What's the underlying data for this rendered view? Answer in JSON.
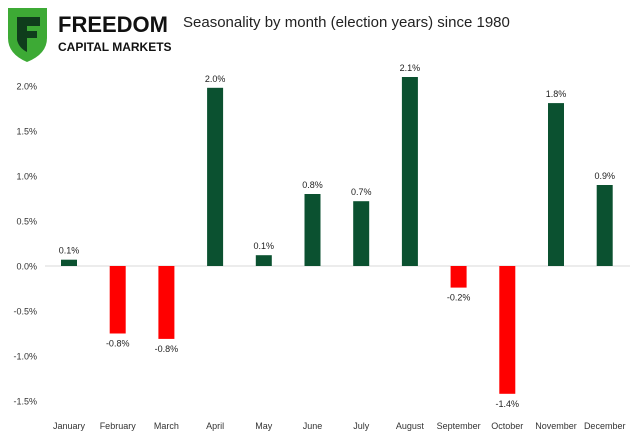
{
  "logo": {
    "name": "FREEDOM",
    "sub": "CAPITAL MARKETS"
  },
  "chart_data": {
    "type": "bar",
    "title": "Seasonality by month (election years) since 1980",
    "xlabel": "",
    "ylabel": "",
    "ylim": [
      -1.5,
      2.0
    ],
    "yticks": [
      2.0,
      1.5,
      1.0,
      0.5,
      0.0,
      -0.5,
      -1.0,
      -1.5
    ],
    "ytick_labels": [
      "2.0%",
      "1.5%",
      "1.0%",
      "0.5%",
      "0.0%",
      "-0.5%",
      "-1.0%",
      "-1.5%"
    ],
    "grid": false,
    "categories": [
      "January",
      "February",
      "March",
      "April",
      "May",
      "June",
      "July",
      "August",
      "September",
      "October",
      "November",
      "December"
    ],
    "values": [
      0.07,
      -0.75,
      -0.81,
      1.98,
      0.12,
      0.8,
      0.72,
      2.1,
      -0.24,
      -1.42,
      1.81,
      0.9
    ],
    "data_labels": [
      "0.1%",
      "-0.8%",
      "-0.8%",
      "2.0%",
      "0.1%",
      "0.8%",
      "0.7%",
      "2.1%",
      "-0.2%",
      "-1.4%",
      "1.8%",
      "0.9%"
    ],
    "colors": {
      "positive": "#0b5130",
      "negative": "#ff0000"
    }
  }
}
